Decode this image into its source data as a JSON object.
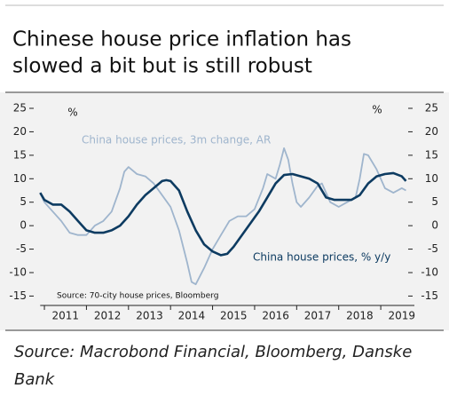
{
  "chart_data": {
    "type": "line",
    "title": [
      "Chinese house price inflation has",
      "slowed a bit but is still robust"
    ],
    "source": [
      "Source: Macrobond Financial, Bloomberg, Danske",
      "Bank"
    ],
    "inner_source": "Source: 70-city house prices, Bloomberg",
    "y_unit_left": "%",
    "y_unit_right": "%",
    "xlim": [
      2010.9,
      2019.8
    ],
    "xticks": [
      2011,
      2012,
      2013,
      2014,
      2015,
      2016,
      2017,
      2018,
      2019
    ],
    "ylim": [
      -17,
      25
    ],
    "yticks": [
      25,
      20,
      15,
      10,
      5,
      0,
      -5,
      -10,
      -15
    ],
    "y2lim": [
      -17,
      25
    ],
    "y2ticks": [
      25,
      20,
      15,
      10,
      5,
      0,
      -5,
      -10,
      -15
    ],
    "series": [
      {
        "name": "China house prices, 3m change, AR",
        "color": "#9fb5cd",
        "x": [
          2010.9,
          2011.0,
          2011.2,
          2011.4,
          2011.6,
          2011.8,
          2012.0,
          2012.2,
          2012.4,
          2012.6,
          2012.8,
          2012.9,
          2013.0,
          2013.2,
          2013.4,
          2013.6,
          2013.8,
          2014.0,
          2014.2,
          2014.4,
          2014.5,
          2014.6,
          2014.8,
          2015.0,
          2015.2,
          2015.4,
          2015.6,
          2015.8,
          2016.0,
          2016.2,
          2016.3,
          2016.5,
          2016.6,
          2016.7,
          2016.8,
          2016.9,
          2017.0,
          2017.1,
          2017.3,
          2017.5,
          2017.6,
          2017.8,
          2018.0,
          2018.2,
          2018.4,
          2018.5,
          2018.6,
          2018.7,
          2018.9,
          2019.1,
          2019.3,
          2019.5,
          2019.6
        ],
        "values": [
          7,
          5,
          3,
          1,
          -1.5,
          -2,
          -2,
          0,
          1,
          3,
          8,
          11.5,
          12.5,
          11,
          10.5,
          9,
          6.5,
          4,
          -1,
          -8,
          -12,
          -12.5,
          -9,
          -5,
          -2,
          1,
          2,
          2,
          3.5,
          8,
          11,
          10,
          13,
          16.5,
          14,
          9,
          5,
          4,
          6,
          8.5,
          9,
          5,
          4,
          5,
          6,
          10,
          15.3,
          15,
          12,
          8,
          7,
          8,
          7.5
        ]
      },
      {
        "name": "China house prices, % y/y",
        "color": "#0d3b61",
        "x": [
          2010.9,
          2011.0,
          2011.2,
          2011.4,
          2011.6,
          2011.8,
          2012.0,
          2012.2,
          2012.4,
          2012.6,
          2012.8,
          2013.0,
          2013.2,
          2013.4,
          2013.6,
          2013.8,
          2013.9,
          2014.0,
          2014.2,
          2014.4,
          2014.6,
          2014.8,
          2015.0,
          2015.2,
          2015.35,
          2015.5,
          2015.7,
          2015.9,
          2016.1,
          2016.3,
          2016.5,
          2016.7,
          2016.9,
          2017.1,
          2017.3,
          2017.5,
          2017.7,
          2017.9,
          2018.1,
          2018.3,
          2018.5,
          2018.7,
          2018.9,
          2019.1,
          2019.3,
          2019.5,
          2019.6
        ],
        "values": [
          7,
          5.5,
          4.5,
          4.5,
          3,
          1,
          -1,
          -1.5,
          -1.5,
          -1,
          0,
          2,
          4.5,
          6.5,
          8,
          9.5,
          9.7,
          9.5,
          7.5,
          3,
          -1,
          -4,
          -5.5,
          -6.3,
          -6,
          -4.5,
          -2,
          0.5,
          3,
          6,
          9,
          10.8,
          11,
          10.5,
          10,
          9,
          6,
          5.5,
          5.5,
          5.5,
          6.5,
          9,
          10.5,
          11,
          11.2,
          10.5,
          9.5
        ]
      }
    ]
  }
}
